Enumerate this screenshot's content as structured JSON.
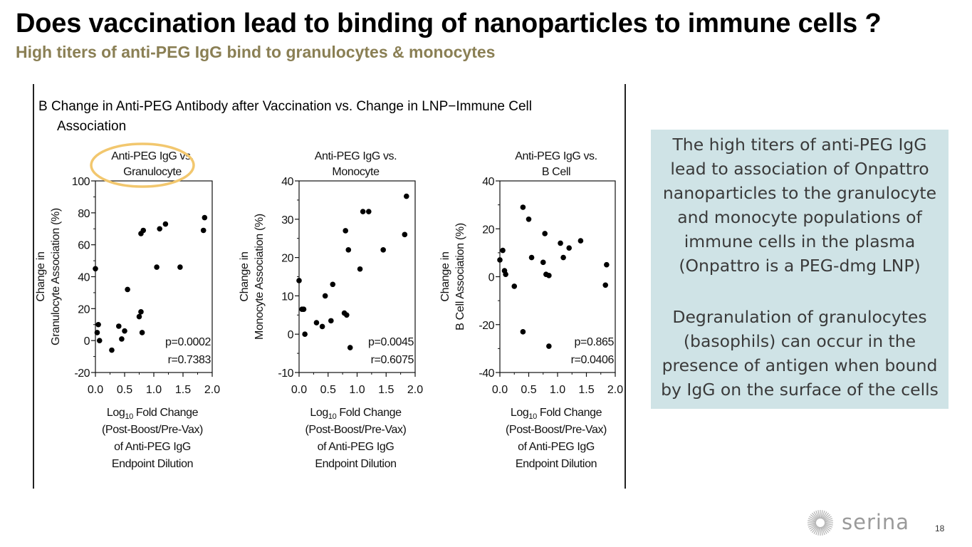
{
  "slide": {
    "title": "Does vaccination lead to binding of nanoparticles to immune cells ?",
    "subtitle": "High titers of anti-PEG IgG bind to granulocytes & monocytes",
    "page_number": "18",
    "logo_text": "serina"
  },
  "figure": {
    "heading_line1": "B  Change in Anti-PEG Antibody after Vaccination vs. Change in LNP−Immune Cell",
    "heading_line2": "Association"
  },
  "callout": {
    "paragraph1": [
      "The high titers of anti-PEG IgG",
      "lead to association of Onpattro",
      "nanoparticles to the granulocyte",
      "and monocyte populations of",
      "immune cells in the plasma",
      "(Onpattro is a PEG-dmg LNP)"
    ],
    "paragraph2": [
      "Degranulation of granulocytes",
      "(basophils) can occur in the",
      "presence of antigen when bound",
      "by IgG on the surface of the cells"
    ]
  },
  "colors": {
    "highlight_ellipse": "#f2c76e",
    "callout_bg": "#cfe3e6",
    "subtitle": "#8a7f54"
  },
  "chart_data": [
    {
      "type": "scatter",
      "title_lines": [
        "Anti-PEG IgG vs.",
        "Granulocyte"
      ],
      "highlighted": true,
      "ylabel_lines": [
        "Change in",
        "Granulocyte Association (%)"
      ],
      "xlabel_lines": [
        "Log10 Fold Change",
        "(Post-Boost/Pre-Vax)",
        "of Anti-PEG IgG",
        "Endpoint Dilution"
      ],
      "xlim": [
        0.0,
        2.0
      ],
      "ylim": [
        -20,
        100
      ],
      "xticks": [
        "0.0",
        "0.5",
        "1.0",
        "1.5",
        "2.0"
      ],
      "yticks": [
        "-20",
        "0",
        "20",
        "40",
        "60",
        "80",
        "100"
      ],
      "xtick_values": [
        0.0,
        0.5,
        1.0,
        1.5,
        2.0
      ],
      "ytick_values": [
        -20,
        0,
        20,
        40,
        60,
        80,
        100
      ],
      "stats": [
        "p=0.0002",
        "r=0.7383"
      ],
      "points": [
        [
          0.0,
          45
        ],
        [
          0.05,
          10
        ],
        [
          0.03,
          5
        ],
        [
          0.07,
          0
        ],
        [
          0.28,
          -6
        ],
        [
          0.4,
          9
        ],
        [
          0.45,
          1
        ],
        [
          0.5,
          6
        ],
        [
          0.55,
          32
        ],
        [
          0.75,
          15
        ],
        [
          0.78,
          18
        ],
        [
          0.8,
          5
        ],
        [
          0.78,
          67
        ],
        [
          0.82,
          69
        ],
        [
          1.05,
          46
        ],
        [
          1.1,
          70
        ],
        [
          1.2,
          73
        ],
        [
          1.45,
          46
        ],
        [
          1.85,
          69
        ],
        [
          1.87,
          77
        ]
      ]
    },
    {
      "type": "scatter",
      "title_lines": [
        "Anti-PEG IgG vs.",
        "Monocyte"
      ],
      "highlighted": false,
      "ylabel_lines": [
        "Change in",
        "Monocyte Association (%)"
      ],
      "xlabel_lines": [
        "Log10 Fold Change",
        "(Post-Boost/Pre-Vax)",
        "of Anti-PEG IgG",
        "Endpoint Dilution"
      ],
      "xlim": [
        0.0,
        2.0
      ],
      "ylim": [
        -10,
        40
      ],
      "xticks": [
        "0.0",
        "0.5",
        "1.0",
        "1.5",
        "2.0"
      ],
      "yticks": [
        "-10",
        "0",
        "10",
        "20",
        "30",
        "40"
      ],
      "xtick_values": [
        0.0,
        0.5,
        1.0,
        1.5,
        2.0
      ],
      "ytick_values": [
        -10,
        0,
        10,
        20,
        30,
        40
      ],
      "stats": [
        "p=0.0045",
        "r=0.6075"
      ],
      "points": [
        [
          0.0,
          14
        ],
        [
          0.05,
          6.5
        ],
        [
          0.08,
          6.5
        ],
        [
          0.1,
          0
        ],
        [
          0.3,
          3
        ],
        [
          0.4,
          2
        ],
        [
          0.45,
          10
        ],
        [
          0.55,
          3.5
        ],
        [
          0.58,
          13
        ],
        [
          0.78,
          5.5
        ],
        [
          0.82,
          5
        ],
        [
          0.8,
          27
        ],
        [
          0.85,
          22
        ],
        [
          0.88,
          -3.5
        ],
        [
          1.05,
          17
        ],
        [
          1.1,
          32
        ],
        [
          1.2,
          32
        ],
        [
          1.45,
          22
        ],
        [
          1.82,
          26
        ],
        [
          1.85,
          36
        ]
      ]
    },
    {
      "type": "scatter",
      "title_lines": [
        "Anti-PEG IgG vs.",
        "B Cell"
      ],
      "highlighted": false,
      "ylabel_lines": [
        "Change in",
        "B Cell Association (%)"
      ],
      "xlabel_lines": [
        "Log10 Fold Change",
        "(Post-Boost/Pre-Vax)",
        "of Anti-PEG IgG",
        "Endpoint Dilution"
      ],
      "xlim": [
        0.0,
        2.0
      ],
      "ylim": [
        -40,
        40
      ],
      "xticks": [
        "0.0",
        "0.5",
        "1.0",
        "1.5",
        "2.0"
      ],
      "yticks": [
        "-40",
        "-20",
        "0",
        "20",
        "40"
      ],
      "xtick_values": [
        0.0,
        0.5,
        1.0,
        1.5,
        2.0
      ],
      "ytick_values": [
        -40,
        -20,
        0,
        20,
        40
      ],
      "stats": [
        "p=0.865",
        "r=0.0406"
      ],
      "points": [
        [
          0.0,
          7
        ],
        [
          0.05,
          11
        ],
        [
          0.08,
          2.5
        ],
        [
          0.1,
          1
        ],
        [
          0.25,
          -4
        ],
        [
          0.4,
          -23
        ],
        [
          0.4,
          29
        ],
        [
          0.5,
          24
        ],
        [
          0.55,
          8
        ],
        [
          0.75,
          6
        ],
        [
          0.78,
          18
        ],
        [
          0.8,
          1
        ],
        [
          0.85,
          0.5
        ],
        [
          0.85,
          -29
        ],
        [
          1.05,
          14
        ],
        [
          1.1,
          8
        ],
        [
          1.2,
          12
        ],
        [
          1.4,
          15
        ],
        [
          1.85,
          5
        ],
        [
          1.83,
          -3.5
        ]
      ]
    }
  ]
}
